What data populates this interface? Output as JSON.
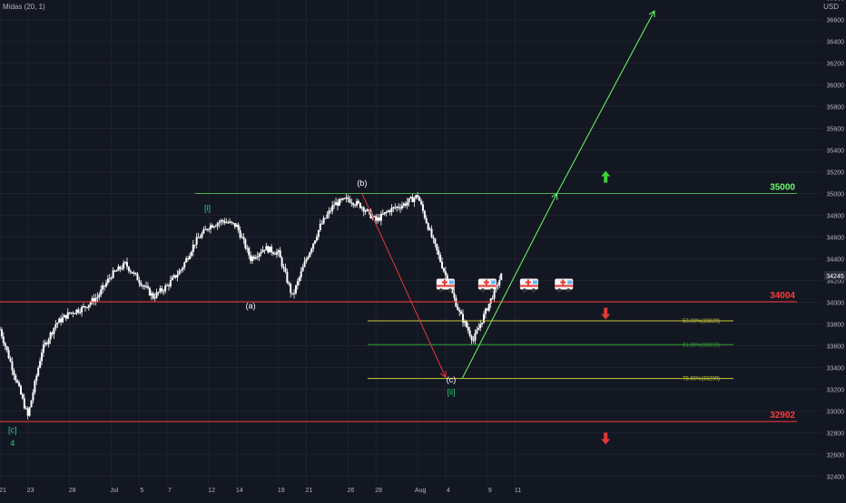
{
  "header": {
    "study_label": "Midas (20, 1)",
    "currency": "USD"
  },
  "colors": {
    "background": "#131722",
    "grid": "#1e2230",
    "candle_up": "#ffffff",
    "candle_down": "#ffffff",
    "axis_text": "#b2b5be",
    "green_line": "#4caf50",
    "bright_green": "#66ff66",
    "red_line": "#ff3b3b",
    "yellow_line": "#c9c93b",
    "wave_label_green": "#26d07c",
    "fib_green": "#2e9e2e"
  },
  "chart_data": {
    "type": "candlestick",
    "y_axis": {
      "ylim": [
        32320,
        36780
      ],
      "ticks": [
        32400,
        32600,
        32800,
        33000,
        33200,
        33400,
        33600,
        33800,
        34000,
        34200,
        34400,
        34600,
        34800,
        35000,
        35200,
        35400,
        35600,
        35800,
        36000,
        36200,
        36400,
        36600,
        36800
      ],
      "current_price_label": "34245",
      "current_price": 34245
    },
    "x_axis": {
      "xlim": [
        0,
        59
      ],
      "tick_labels": [
        {
          "label": "21",
          "i": 0
        },
        {
          "label": "23",
          "i": 2
        },
        {
          "label": "28",
          "i": 5
        },
        {
          "label": "Jul",
          "i": 8
        },
        {
          "label": "5",
          "i": 10
        },
        {
          "label": "7",
          "i": 12
        },
        {
          "label": "12",
          "i": 15
        },
        {
          "label": "14",
          "i": 17
        },
        {
          "label": "19",
          "i": 20
        },
        {
          "label": "21",
          "i": 22
        },
        {
          "label": "26",
          "i": 25
        },
        {
          "label": "28",
          "i": 27
        },
        {
          "label": "Aug",
          "i": 30
        },
        {
          "label": "4",
          "i": 32
        },
        {
          "label": "9",
          "i": 35
        },
        {
          "label": "11",
          "i": 37
        }
      ]
    },
    "price_path": [
      [
        0,
        33750
      ],
      [
        1,
        33350
      ],
      [
        2,
        32950
      ],
      [
        3,
        33550
      ],
      [
        4,
        33800
      ],
      [
        5,
        33900
      ],
      [
        6,
        33950
      ],
      [
        7,
        34050
      ],
      [
        8,
        34250
      ],
      [
        9,
        34350
      ],
      [
        10,
        34200
      ],
      [
        11,
        34050
      ],
      [
        12,
        34150
      ],
      [
        13,
        34300
      ],
      [
        14,
        34550
      ],
      [
        15,
        34700
      ],
      [
        16,
        34750
      ],
      [
        17,
        34700
      ],
      [
        18,
        34400
      ],
      [
        19,
        34500
      ],
      [
        20,
        34450
      ],
      [
        21,
        34050
      ],
      [
        22,
        34400
      ],
      [
        23,
        34700
      ],
      [
        24,
        34900
      ],
      [
        25,
        34950
      ],
      [
        26,
        34880
      ],
      [
        27,
        34750
      ],
      [
        28,
        34850
      ],
      [
        29,
        34900
      ],
      [
        30,
        34980
      ],
      [
        31,
        34600
      ],
      [
        32,
        34250
      ],
      [
        33,
        33900
      ],
      [
        34,
        33650
      ],
      [
        35,
        33950
      ],
      [
        36,
        34245
      ]
    ],
    "levels": [
      {
        "value": 35000,
        "label": "35000",
        "color": "#4caf50",
        "label_color": "#66ff66"
      },
      {
        "value": 34004,
        "label": "34004",
        "color": "#ff3b3b",
        "label_color": "#ff3b3b"
      },
      {
        "value": 32902,
        "label": "32902",
        "color": "#ff3b3b",
        "label_color": "#ff3b3b"
      }
    ],
    "fib_levels": [
      {
        "value": 33829,
        "label": "50.00%(33829)",
        "color": "#c9c93b"
      },
      {
        "value": 33610,
        "label": "61.80%(33610)",
        "color": "#2e9e2e"
      },
      {
        "value": 33299,
        "label": "78.60%(33299)",
        "color": "#c9c93b"
      }
    ],
    "wave_labels": [
      {
        "text": "[c]",
        "i": 0.9,
        "y": 32800,
        "color": "#26d07c"
      },
      {
        "text": "4",
        "i": 0.9,
        "y": 32680,
        "color": "#26d07c"
      },
      {
        "text": "[i]",
        "i": 14.9,
        "y": 34840,
        "color": "#26d07c"
      },
      {
        "text": "(a)",
        "i": 18,
        "y": 33940,
        "color": "#ffffff"
      },
      {
        "text": "(b)",
        "i": 26,
        "y": 35070,
        "color": "#ffffff"
      },
      {
        "text": "(c)",
        "i": 32.4,
        "y": 33260,
        "color": "#ffffff"
      },
      {
        "text": "[ii]",
        "i": 32.4,
        "y": 33150,
        "color": "#26d07c"
      }
    ],
    "projection": {
      "down": [
        [
          26,
          35000
        ],
        [
          32,
          33310
        ]
      ],
      "up1": [
        [
          33.2,
          33300
        ],
        [
          40,
          35000
        ]
      ],
      "up2": [
        [
          40,
          35000
        ],
        [
          47,
          36680
        ]
      ]
    },
    "markers": {
      "ambulances": [
        32,
        35,
        38,
        40.5
      ],
      "arrow_up": {
        "i": 43.5,
        "y": 35150
      },
      "arrow_down_1": {
        "i": 43.5,
        "y": 33900
      },
      "arrow_down_2": {
        "i": 43.5,
        "y": 32750
      }
    }
  }
}
